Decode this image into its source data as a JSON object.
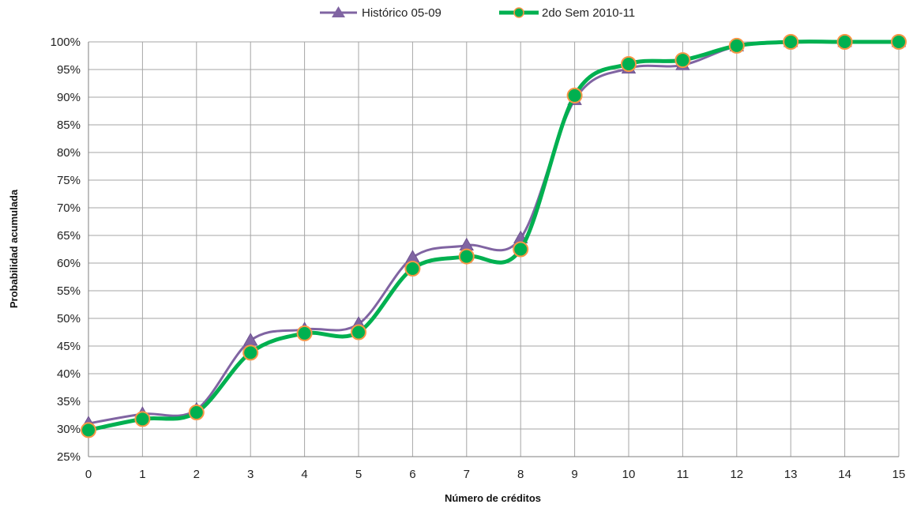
{
  "chart_data": {
    "type": "line",
    "xlabel": "Número de créditos",
    "ylabel": "Probabilidad acumulada",
    "x": [
      0,
      1,
      2,
      3,
      4,
      5,
      6,
      7,
      8,
      9,
      10,
      11,
      12,
      13,
      14,
      15
    ],
    "xlim": [
      0,
      15
    ],
    "ylim": [
      25,
      100
    ],
    "ytick_step": 5,
    "ytick_format": "percent",
    "grid": true,
    "smooth": true,
    "legend_position": "top-center",
    "series": [
      {
        "name": "Histórico 05-09",
        "color": "#8064A2",
        "marker": "triangle",
        "values": [
          31,
          32.7,
          33.5,
          46,
          48,
          49,
          61,
          63.2,
          64.5,
          89.5,
          95.2,
          95.8,
          99.2,
          100,
          100,
          100
        ]
      },
      {
        "name": "2do Sem 2010-11",
        "color": "#00B050",
        "marker": "circle",
        "marker_edge": "#F79646",
        "values": [
          29.8,
          31.8,
          33,
          43.8,
          47.3,
          47.5,
          59,
          61.2,
          62.5,
          90.3,
          96,
          96.7,
          99.3,
          100,
          100,
          100
        ]
      }
    ]
  }
}
